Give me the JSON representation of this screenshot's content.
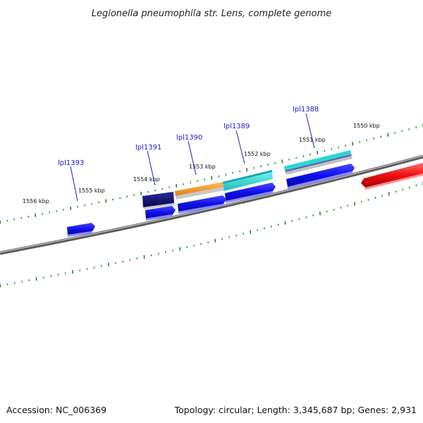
{
  "title": "Legionella pneumophila str. Lens, complete genome",
  "footer": {
    "accession": "Accession: NC_006369",
    "summary": "Topology: circular; Length: 3,345,687 bp; Genes: 2,931"
  },
  "scale_labels": [
    "1550 kbp",
    "1551 kbp",
    "1552 kbp",
    "1553 kbp",
    "1554 kbp",
    "1555 kbp",
    "1556 kbp"
  ],
  "gene_labels": [
    "lpl1388",
    "lpl1389",
    "lpl1390",
    "lpl1391",
    "lpl1393"
  ],
  "colors": {
    "backbone": "#7a7a7a",
    "ticks": "#1a8c1a",
    "cds": "#1010ee",
    "cds_dark": "#0a0a80",
    "orange": "#f29a1a",
    "cyan": "#2ad6d6",
    "red": "#ee1010",
    "label": "#1a1ac8"
  }
}
